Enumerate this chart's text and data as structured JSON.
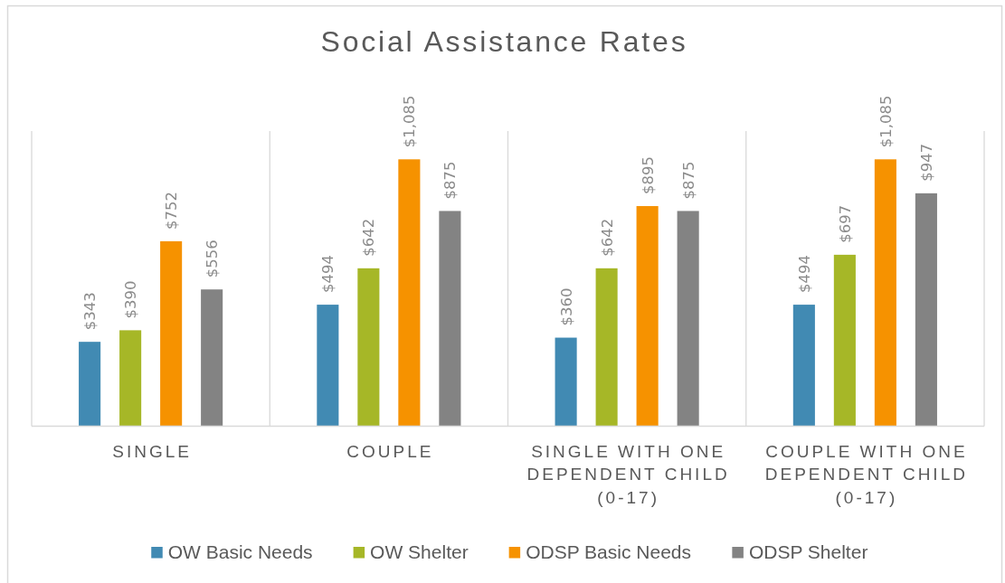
{
  "chart_data": {
    "type": "bar",
    "title": "Social Assistance Rates",
    "categories": [
      "SINGLE",
      "COUPLE",
      "SINGLE WITH ONE DEPENDENT CHILD (0-17)",
      "COUPLE WITH ONE DEPENDENT CHILD (0-17)"
    ],
    "series": [
      {
        "name": "OW Basic Needs",
        "color": "#418ab3",
        "values": [
          343,
          494,
          360,
          494
        ],
        "value_labels": [
          "$343",
          "$494",
          "$360",
          "$494"
        ]
      },
      {
        "name": "OW Shelter",
        "color": "#a6b727",
        "values": [
          390,
          642,
          642,
          697
        ],
        "value_labels": [
          "$390",
          "$642",
          "$642",
          "$697"
        ]
      },
      {
        "name": "ODSP Basic Needs",
        "color": "#f69200",
        "values": [
          752,
          1085,
          895,
          1085
        ],
        "value_labels": [
          "$752",
          "$1,085",
          "$895",
          "$1,085"
        ]
      },
      {
        "name": "ODSP Shelter",
        "color": "#838383",
        "values": [
          556,
          875,
          875,
          947
        ],
        "value_labels": [
          "$556",
          "$875",
          "$875",
          "$947"
        ]
      }
    ],
    "ylim": [
      0,
      1200
    ],
    "tick_labels": "x",
    "grid": "x",
    "legend": "bottom"
  }
}
